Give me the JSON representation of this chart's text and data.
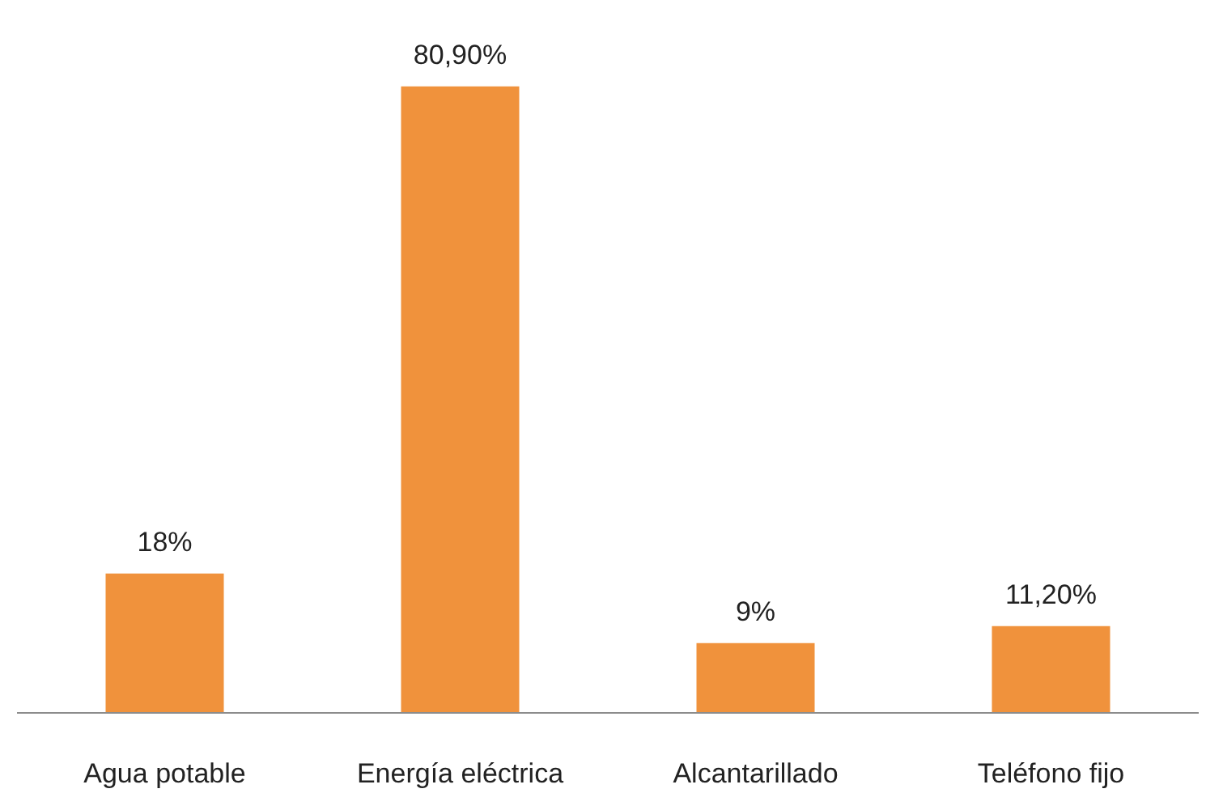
{
  "chart_data": {
    "type": "bar",
    "categories": [
      "Agua potable",
      "Energía eléctrica",
      "Alcantarillado",
      "Teléfono fijo"
    ],
    "values": [
      18,
      80.9,
      9,
      11.2
    ],
    "value_labels": [
      "18%",
      "80,90%",
      "9%",
      "11,20%"
    ],
    "color": "#f0923c",
    "grid": false
  }
}
